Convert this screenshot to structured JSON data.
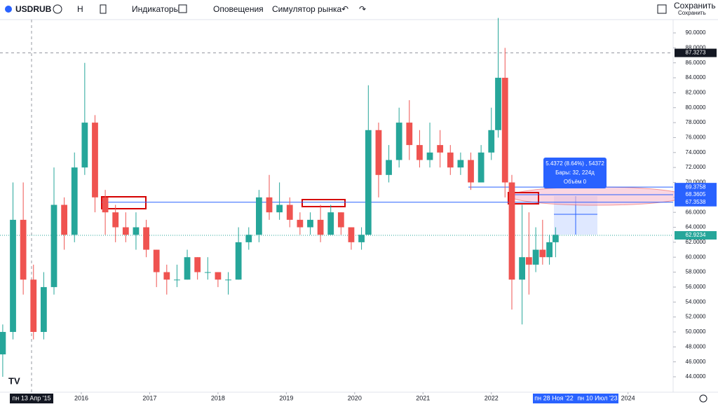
{
  "toolbar": {
    "symbol": "USDRUB",
    "interval": "Н",
    "indicators": "Индикаторы",
    "alerts": "Оповещения",
    "replay": "Симулятор рынка",
    "save": "Сохранить",
    "save_sub": "Сохранить"
  },
  "chart_data": {
    "type": "candlestick",
    "up_color": "#26a69a",
    "down_color": "#ef5350",
    "x": [
      2014.85,
      2015.0,
      2015.15,
      2015.3,
      2015.45,
      2015.6,
      2015.75,
      2015.9,
      2016.05,
      2016.2,
      2016.35,
      2016.5,
      2016.65,
      2016.8,
      2016.95,
      2017.1,
      2017.25,
      2017.4,
      2017.55,
      2017.7,
      2017.85,
      2018.0,
      2018.15,
      2018.3,
      2018.45,
      2018.6,
      2018.75,
      2018.9,
      2019.05,
      2019.2,
      2019.35,
      2019.5,
      2019.65,
      2019.8,
      2019.95,
      2020.1,
      2020.2,
      2020.35,
      2020.5,
      2020.65,
      2020.8,
      2020.95,
      2021.1,
      2021.25,
      2021.4,
      2021.55,
      2021.7,
      2021.85,
      2022.0,
      2022.1,
      2022.2,
      2022.3,
      2022.45,
      2022.55,
      2022.65,
      2022.75,
      2022.85,
      2022.94
    ],
    "open": [
      47,
      50,
      65,
      57,
      50,
      56,
      67,
      63,
      72,
      78,
      68,
      66,
      64,
      63,
      64,
      61,
      58,
      57,
      57,
      60,
      58,
      58,
      57,
      57,
      62,
      63,
      68,
      66,
      67,
      65,
      64,
      65,
      63,
      66,
      64,
      62,
      63,
      77,
      71,
      73,
      78,
      75,
      73,
      75,
      74,
      72,
      73,
      70,
      74,
      77,
      84,
      70,
      57,
      60,
      59,
      61,
      60,
      62
    ],
    "high": [
      51,
      70,
      70,
      59,
      58,
      72,
      68,
      74,
      86,
      79,
      69,
      67,
      66,
      66,
      65,
      61,
      59,
      59,
      61,
      60,
      60,
      58,
      58,
      64,
      64,
      69,
      71,
      70,
      68,
      66,
      66,
      67,
      67,
      66,
      64,
      64,
      83,
      78,
      75,
      80,
      81,
      77,
      78,
      77,
      75,
      74,
      74,
      75,
      80,
      92,
      88,
      71,
      67,
      66,
      64,
      65,
      63,
      64
    ],
    "low": [
      44,
      49,
      55,
      49,
      49,
      55,
      61,
      62,
      71,
      66,
      63,
      62,
      62,
      61,
      60,
      56,
      55,
      56,
      57,
      57,
      57,
      56,
      55,
      57,
      61,
      62,
      65,
      65,
      64,
      63,
      63,
      62,
      63,
      63,
      61,
      61,
      63,
      68,
      70,
      72,
      73,
      72,
      72,
      72,
      71,
      71,
      69,
      70,
      73,
      76,
      68,
      53,
      51,
      55,
      58,
      59,
      59,
      60
    ],
    "close": [
      50,
      65,
      57,
      50,
      56,
      67,
      63,
      72,
      78,
      68,
      66,
      64,
      63,
      64,
      61,
      58,
      57,
      57,
      60,
      58,
      58,
      57,
      57,
      62,
      63,
      68,
      66,
      67,
      65,
      64,
      65,
      63,
      66,
      64,
      62,
      63,
      77,
      71,
      73,
      78,
      75,
      73,
      74,
      74,
      72,
      73,
      70,
      74,
      77,
      84,
      70,
      57,
      60,
      59,
      61,
      60,
      62,
      63
    ],
    "xlim": [
      2014.81,
      2024.66
    ],
    "ylim": [
      41.94,
      91.78
    ],
    "xticks": [
      2016,
      2017,
      2018,
      2019,
      2020,
      2021,
      2022,
      2024
    ],
    "yticks": [
      {
        "value": 44,
        "label": "44.0000"
      },
      {
        "value": 46,
        "label": "46.0000"
      },
      {
        "value": 48,
        "label": "48.0000"
      },
      {
        "value": 50,
        "label": "50.0000"
      },
      {
        "value": 52,
        "label": "52.0000"
      },
      {
        "value": 54,
        "label": "54.0000"
      },
      {
        "value": 56,
        "label": "56.0000"
      },
      {
        "value": 58,
        "label": "58.0000"
      },
      {
        "value": 60,
        "label": "60.0000"
      },
      {
        "value": 62,
        "label": "62.0000"
      },
      {
        "value": 64,
        "label": "64.0000"
      },
      {
        "value": 66,
        "label": "66.0000"
      },
      {
        "value": 68,
        "label": "68.0000"
      },
      {
        "value": 70,
        "label": "70.0000"
      },
      {
        "value": 72,
        "label": "72.0000"
      },
      {
        "value": 74,
        "label": "74.0000"
      },
      {
        "value": 76,
        "label": "76.0000"
      },
      {
        "value": 78,
        "label": "78.0000"
      },
      {
        "value": 80,
        "label": "80.0000"
      },
      {
        "value": 82,
        "label": "82.0000"
      },
      {
        "value": 84,
        "label": "84.0000"
      },
      {
        "value": 86,
        "label": "86.0000"
      },
      {
        "value": 88,
        "label": "88.0000"
      },
      {
        "value": 90,
        "label": "90.0000"
      }
    ],
    "levels": [
      {
        "value": 69.3758,
        "color": "#2962ff"
      },
      {
        "value": 68.3605,
        "color": "#2962ff"
      },
      {
        "value": 67.3538,
        "color": "#2962ff"
      }
    ],
    "last_price": 62.9234,
    "crosshair_price": 87.3273,
    "crosshair_date": "пн 13 Апр '15",
    "range_start": "пн 28 Ноя '22",
    "range_end": "пн 10 Июл '23",
    "measure": {
      "line1": "5.4372 (8.64%) , 54372",
      "line2": "Бары: 32, 224д",
      "line3": "Объём 0"
    }
  }
}
